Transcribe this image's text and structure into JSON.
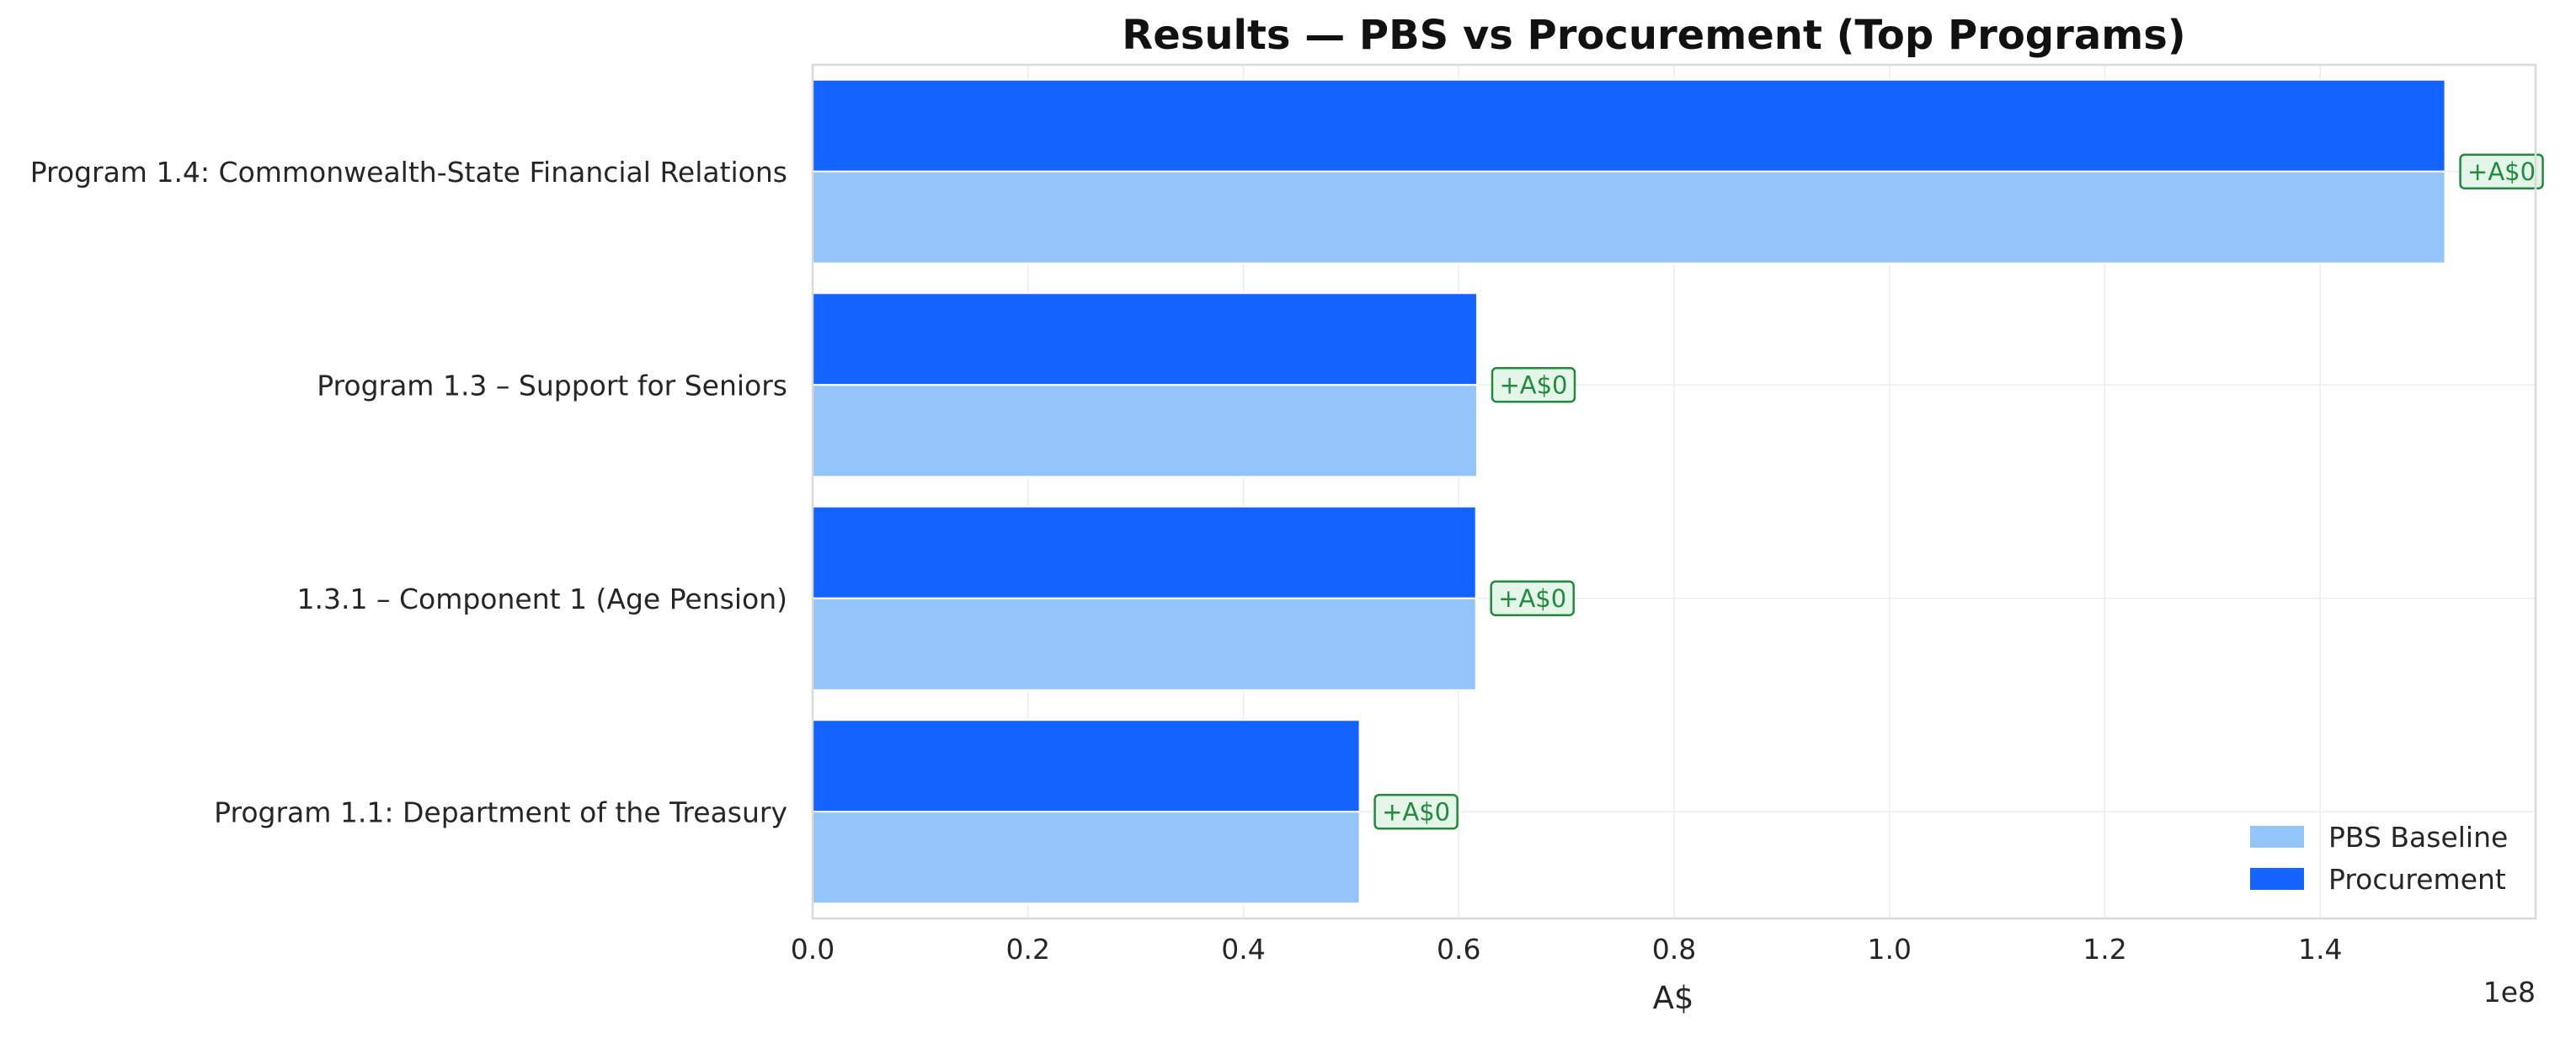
{
  "chart_data": {
    "type": "bar",
    "orientation": "horizontal",
    "title": "Results — PBS vs Procurement (Top Programs)",
    "xlabel": "A$",
    "ylabel": "",
    "x_exponent_label": "1e8",
    "xlim": [
      0,
      1.6
    ],
    "x_ticks": [
      "0.0",
      "0.2",
      "0.4",
      "0.6",
      "0.8",
      "1.0",
      "1.2",
      "1.4"
    ],
    "grid": true,
    "legend_position": "bottom-right",
    "categories": [
      "Program 1.4: Commonwealth-State Financial Relations",
      "Program 1.3 – Support for Seniors",
      "1.3.1 – Component 1 (Age Pension)",
      "Program 1.1: Department of the Treasury"
    ],
    "series": [
      {
        "name": "PBS Baseline",
        "color": "#93c5fb",
        "values": [
          1.516,
          0.617,
          0.616,
          0.508
        ]
      },
      {
        "name": "Procurement",
        "color": "#1263ff",
        "values": [
          1.516,
          0.617,
          0.616,
          0.508
        ]
      }
    ],
    "value_scale": "values in units of 1e8 A$",
    "annotations": [
      "+A$0",
      "+A$0",
      "+A$0",
      "+A$0"
    ],
    "annotation_colors": {
      "text": "#1e8c3a",
      "border": "#1e8c3a",
      "fill": "#e6f5e9"
    }
  }
}
